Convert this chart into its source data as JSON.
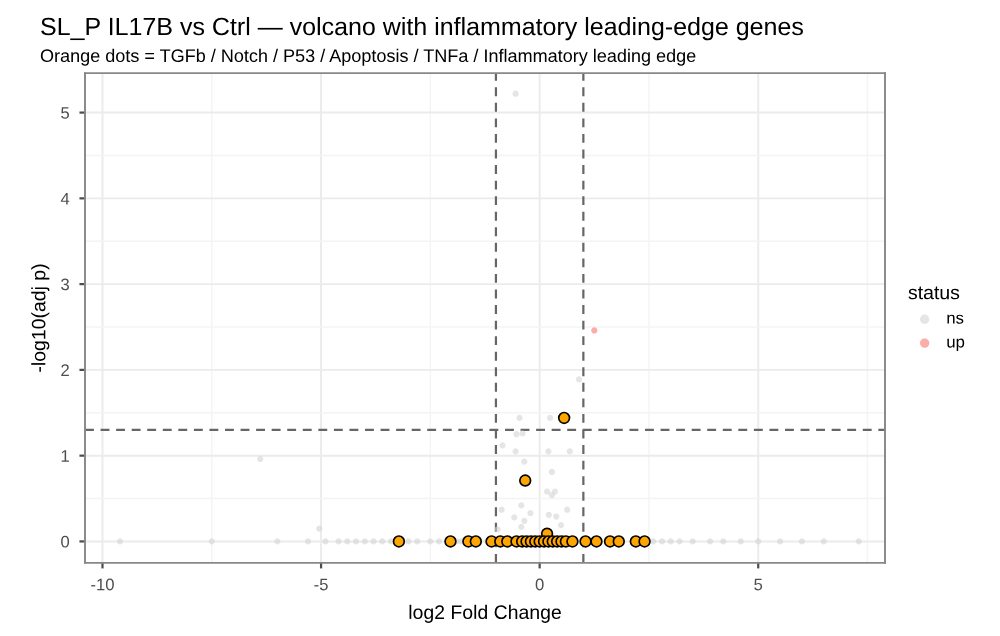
{
  "chart_data": {
    "type": "scatter",
    "title": "SL_P IL17B vs Ctrl — volcano with inflammatory leading-edge genes",
    "subtitle": "Orange dots = TGFb / Notch / P53 / Apoptosis / TNFa / Inflammatory leading edge",
    "xlabel": "log2 Fold Change",
    "ylabel": "-log10(adj p)",
    "legend_title": "status",
    "legend": "right",
    "grid": true,
    "marker": "circle",
    "xlim": [
      -10.4,
      7.9
    ],
    "xticks": [
      -10,
      -5,
      0,
      5
    ],
    "ylim": [
      -0.25,
      5.46
    ],
    "yticks": [
      0,
      1,
      2,
      3,
      4,
      5
    ],
    "ref_lines": [
      {
        "axis": "x",
        "value": -1,
        "line_style": "dashed",
        "color": "#666666"
      },
      {
        "axis": "x",
        "value": 1,
        "line_style": "dashed",
        "color": "#666666"
      },
      {
        "axis": "y",
        "value": 1.3,
        "line_style": "dashed",
        "color": "#666666"
      }
    ],
    "series": [
      {
        "name": "ns",
        "color": "#d3d3d3",
        "x": [
          -9.6,
          -7.5,
          -6.39,
          -6.0,
          -5.3,
          -5.04,
          -4.9,
          -4.6,
          -4.4,
          -4.2,
          -4.0,
          -3.8,
          -3.6,
          -3.4,
          -3.0,
          -2.8,
          -2.5,
          -2.3,
          -1.9,
          -1.8,
          -1.2,
          -0.55,
          -0.46,
          0.24,
          -0.85,
          -0.53,
          -0.39,
          -0.55,
          -0.35,
          0.2,
          0.69,
          0.28,
          0.17,
          0.35,
          0.28,
          -0.87,
          -0.42,
          -0.21,
          0.63,
          -0.58,
          -0.35,
          0.21,
          0.38,
          -0.96,
          -0.42,
          0.49,
          0.9,
          2.6,
          2.8,
          3.0,
          3.2,
          3.5,
          3.9,
          4.2,
          4.6,
          5.0,
          5.5,
          6.0,
          6.5,
          7.3
        ],
        "values": [
          0,
          0,
          0.96,
          0,
          0,
          0.15,
          0,
          0,
          0,
          0,
          0,
          0,
          0,
          0,
          0,
          0,
          0,
          0,
          0,
          0,
          0,
          5.22,
          1.44,
          1.44,
          1.12,
          1.25,
          1.26,
          1.05,
          0.93,
          1.05,
          1.05,
          0.81,
          0.58,
          0.58,
          0.54,
          0.37,
          0.42,
          0.33,
          0.37,
          0.28,
          0.24,
          0.31,
          0.29,
          0.14,
          0.17,
          0.19,
          1.89,
          0,
          0,
          0,
          0,
          0,
          0,
          0,
          0,
          0,
          0,
          0,
          0,
          0
        ]
      },
      {
        "name": "up",
        "color": "#f8766d",
        "x": [
          1.25
        ],
        "values": [
          2.46
        ]
      },
      {
        "color": "#ffa500",
        "x": [
          0.56,
          -0.33,
          0.17,
          -3.22,
          -2.04,
          -1.63,
          -1.46,
          -1.1,
          -0.9,
          -0.74,
          -0.53,
          -0.4,
          -0.3,
          -0.2,
          -0.1,
          0.0,
          0.1,
          0.2,
          0.3,
          0.4,
          0.5,
          0.6,
          0.75,
          1.05,
          1.3,
          1.61,
          1.81,
          2.2,
          2.4
        ],
        "values": [
          1.44,
          0.71,
          0.09,
          0,
          0,
          0,
          0,
          0,
          0,
          0,
          0,
          0,
          0,
          0,
          0,
          0,
          0,
          0,
          0,
          0,
          0,
          0,
          0,
          0,
          0,
          0,
          0,
          0,
          0
        ]
      }
    ]
  }
}
